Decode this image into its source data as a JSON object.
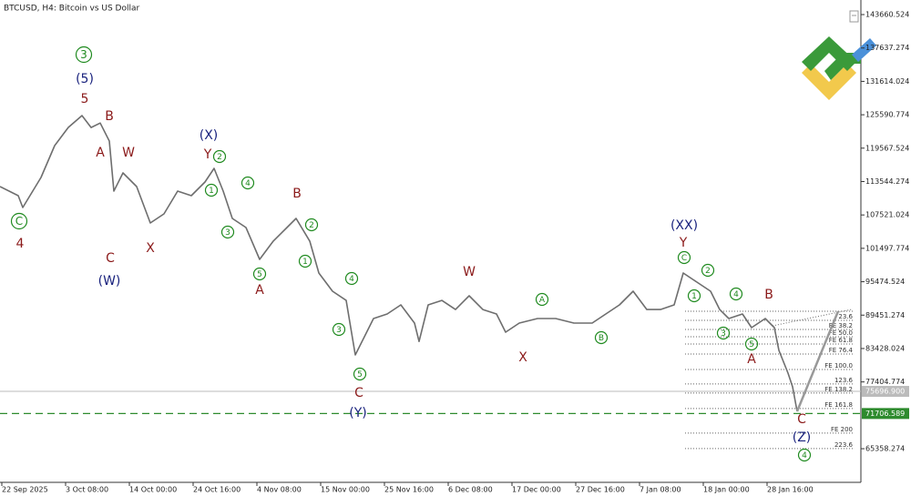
{
  "chart_data": {
    "type": "line",
    "title": "BTCUSD, H4:  Bitcoin vs US Dollar",
    "color": "#6e6e6e",
    "x": [
      0,
      4,
      5,
      9,
      12,
      15,
      18,
      20,
      22,
      24,
      25,
      27,
      30,
      33,
      36,
      39,
      42,
      45,
      47,
      49,
      51,
      54,
      57,
      60,
      63,
      65,
      68,
      70,
      73,
      76,
      78,
      80,
      82,
      85,
      88,
      91,
      92,
      94,
      97,
      100,
      103,
      106,
      109,
      111,
      114,
      118,
      122,
      126,
      130,
      133,
      136,
      139,
      142,
      145,
      148,
      150,
      153,
      156,
      158,
      160,
      163,
      165,
      168,
      170,
      171,
      173,
      174,
      175
    ],
    "values": [
      112636,
      110995,
      108861,
      114278,
      120023,
      123307,
      125439,
      123300,
      124100,
      120840,
      111814,
      115100,
      112636,
      106070,
      107712,
      111814,
      110990,
      113460,
      115920,
      111814,
      106890,
      105250,
      99500,
      102800,
      105250,
      106890,
      102800,
      97040,
      93760,
      92100,
      82270,
      85550,
      88830,
      89650,
      91300,
      88010,
      84700,
      91300,
      92100,
      90470,
      92940,
      90470,
      89650,
      86370,
      88010,
      88830,
      88830,
      88010,
      88010,
      89650,
      91300,
      93760,
      90470,
      90470,
      91300,
      97040,
      95400,
      93760,
      90470,
      88830,
      89650,
      87190,
      88830,
      87190,
      83090,
      78980,
      76520,
      72090
    ],
    "projection": {
      "x": [
        175,
        184
      ],
      "values": [
        72090,
        90150
      ],
      "color": "#999999"
    },
    "xlim": [
      0,
      189
    ],
    "xticks": [
      {
        "value": 0,
        "label": "22 Sep 2025"
      },
      {
        "value": 14,
        "label": "3 Oct 08:00"
      },
      {
        "value": 28,
        "label": "14 Oct 00:00"
      },
      {
        "value": 42,
        "label": "24 Oct 16:00"
      },
      {
        "value": 56,
        "label": "4 Nov 08:00"
      },
      {
        "value": 70,
        "label": "15 Nov 00:00"
      },
      {
        "value": 84,
        "label": "25 Nov 16:00"
      },
      {
        "value": 98,
        "label": "6 Dec 08:00"
      },
      {
        "value": 112,
        "label": "17 Dec 00:00"
      },
      {
        "value": 126,
        "label": "27 Dec 16:00"
      },
      {
        "value": 140,
        "label": "7 Jan 08:00"
      },
      {
        "value": 154,
        "label": "18 Jan 00:00"
      },
      {
        "value": 168,
        "label": "28 Jan 16:00"
      }
    ],
    "ylim": [
      59290,
      146290
    ],
    "yticks": [
      143660.524,
      137637.274,
      131614.024,
      125590.774,
      119567.524,
      113544.274,
      107521.024,
      101497.774,
      95474.524,
      89451.274,
      83428.024,
      77404.774,
      65358.274
    ],
    "price_lines": [
      {
        "value": 75696.9,
        "label": "75696.900",
        "color": "#bbbbbb",
        "dashed": false
      },
      {
        "value": 71706.589,
        "label": "71706.589",
        "color": "#2e8b2e",
        "dashed": true
      }
    ],
    "fib_levels": [
      {
        "value": 90150,
        "label": ""
      },
      {
        "value": 88510,
        "label": "23.6"
      },
      {
        "value": 86870,
        "label": "FE 38.2"
      },
      {
        "value": 85560,
        "label": "FE 50.0"
      },
      {
        "value": 84240,
        "label": "FE 61.8"
      },
      {
        "value": 82440,
        "label": "FE 76.4"
      },
      {
        "value": 79650,
        "label": "FE 100.0"
      },
      {
        "value": 77030,
        "label": "123.6"
      },
      {
        "value": 75390,
        "label": "FE 138.2"
      },
      {
        "value": 72600,
        "label": "FE 161.8"
      },
      {
        "value": 68170,
        "label": "FE 200"
      },
      {
        "value": 65380,
        "label": "223.6"
      }
    ],
    "annotations": [
      {
        "text": "C",
        "color": "#1f8a1f",
        "shape": "circle"
      },
      {
        "text": "4",
        "color": "#8b1a1a"
      },
      {
        "text": "3",
        "color": "#1f8a1f",
        "shape": "circle"
      },
      {
        "text": "(5)",
        "color": "#1a237e"
      },
      {
        "text": "5",
        "color": "#8b1a1a"
      },
      {
        "text": "B",
        "color": "#8b1a1a"
      },
      {
        "text": "A",
        "color": "#8b1a1a"
      },
      {
        "text": "W",
        "color": "#8b1a1a"
      },
      {
        "text": "C",
        "color": "#8b1a1a"
      },
      {
        "text": "(W)",
        "color": "#1a237e"
      },
      {
        "text": "X",
        "color": "#8b1a1a"
      },
      {
        "text": "(X)",
        "color": "#1a237e"
      },
      {
        "text": "Y",
        "color": "#8b1a1a"
      },
      {
        "text": "2",
        "color": "#1f8a1f",
        "shape": "circle"
      },
      {
        "text": "1",
        "color": "#1f8a1f",
        "shape": "circle"
      },
      {
        "text": "4",
        "color": "#1f8a1f",
        "shape": "circle"
      },
      {
        "text": "3",
        "color": "#1f8a1f",
        "shape": "circle"
      },
      {
        "text": "5",
        "color": "#1f8a1f",
        "shape": "circle"
      },
      {
        "text": "A",
        "color": "#8b1a1a"
      },
      {
        "text": "B",
        "color": "#8b1a1a"
      },
      {
        "text": "2",
        "color": "#1f8a1f",
        "shape": "circle"
      },
      {
        "text": "1",
        "color": "#1f8a1f",
        "shape": "circle"
      },
      {
        "text": "4",
        "color": "#1f8a1f",
        "shape": "circle"
      },
      {
        "text": "3",
        "color": "#1f8a1f",
        "shape": "circle"
      },
      {
        "text": "5",
        "color": "#1f8a1f",
        "shape": "circle"
      },
      {
        "text": "C",
        "color": "#8b1a1a"
      },
      {
        "text": "(Y)",
        "color": "#1a237e"
      },
      {
        "text": "W",
        "color": "#8b1a1a"
      },
      {
        "text": "X",
        "color": "#8b1a1a"
      },
      {
        "text": "A",
        "color": "#1f8a1f",
        "shape": "circle"
      },
      {
        "text": "B",
        "color": "#1f8a1f",
        "shape": "circle"
      },
      {
        "text": "(XX)",
        "color": "#1a237e"
      },
      {
        "text": "Y",
        "color": "#8b1a1a"
      },
      {
        "text": "C",
        "color": "#1f8a1f",
        "shape": "circle"
      },
      {
        "text": "2",
        "color": "#1f8a1f",
        "shape": "circle"
      },
      {
        "text": "1",
        "color": "#1f8a1f",
        "shape": "circle"
      },
      {
        "text": "4",
        "color": "#1f8a1f",
        "shape": "circle"
      },
      {
        "text": "3",
        "color": "#1f8a1f",
        "shape": "circle"
      },
      {
        "text": "5",
        "color": "#1f8a1f",
        "shape": "circle"
      },
      {
        "text": "A",
        "color": "#8b1a1a"
      },
      {
        "text": "B",
        "color": "#8b1a1a"
      },
      {
        "text": "C",
        "color": "#8b1a1a"
      },
      {
        "text": "(Z)",
        "color": "#1a237e"
      },
      {
        "text": "4",
        "color": "#1f8a1f",
        "shape": "circle"
      }
    ]
  }
}
